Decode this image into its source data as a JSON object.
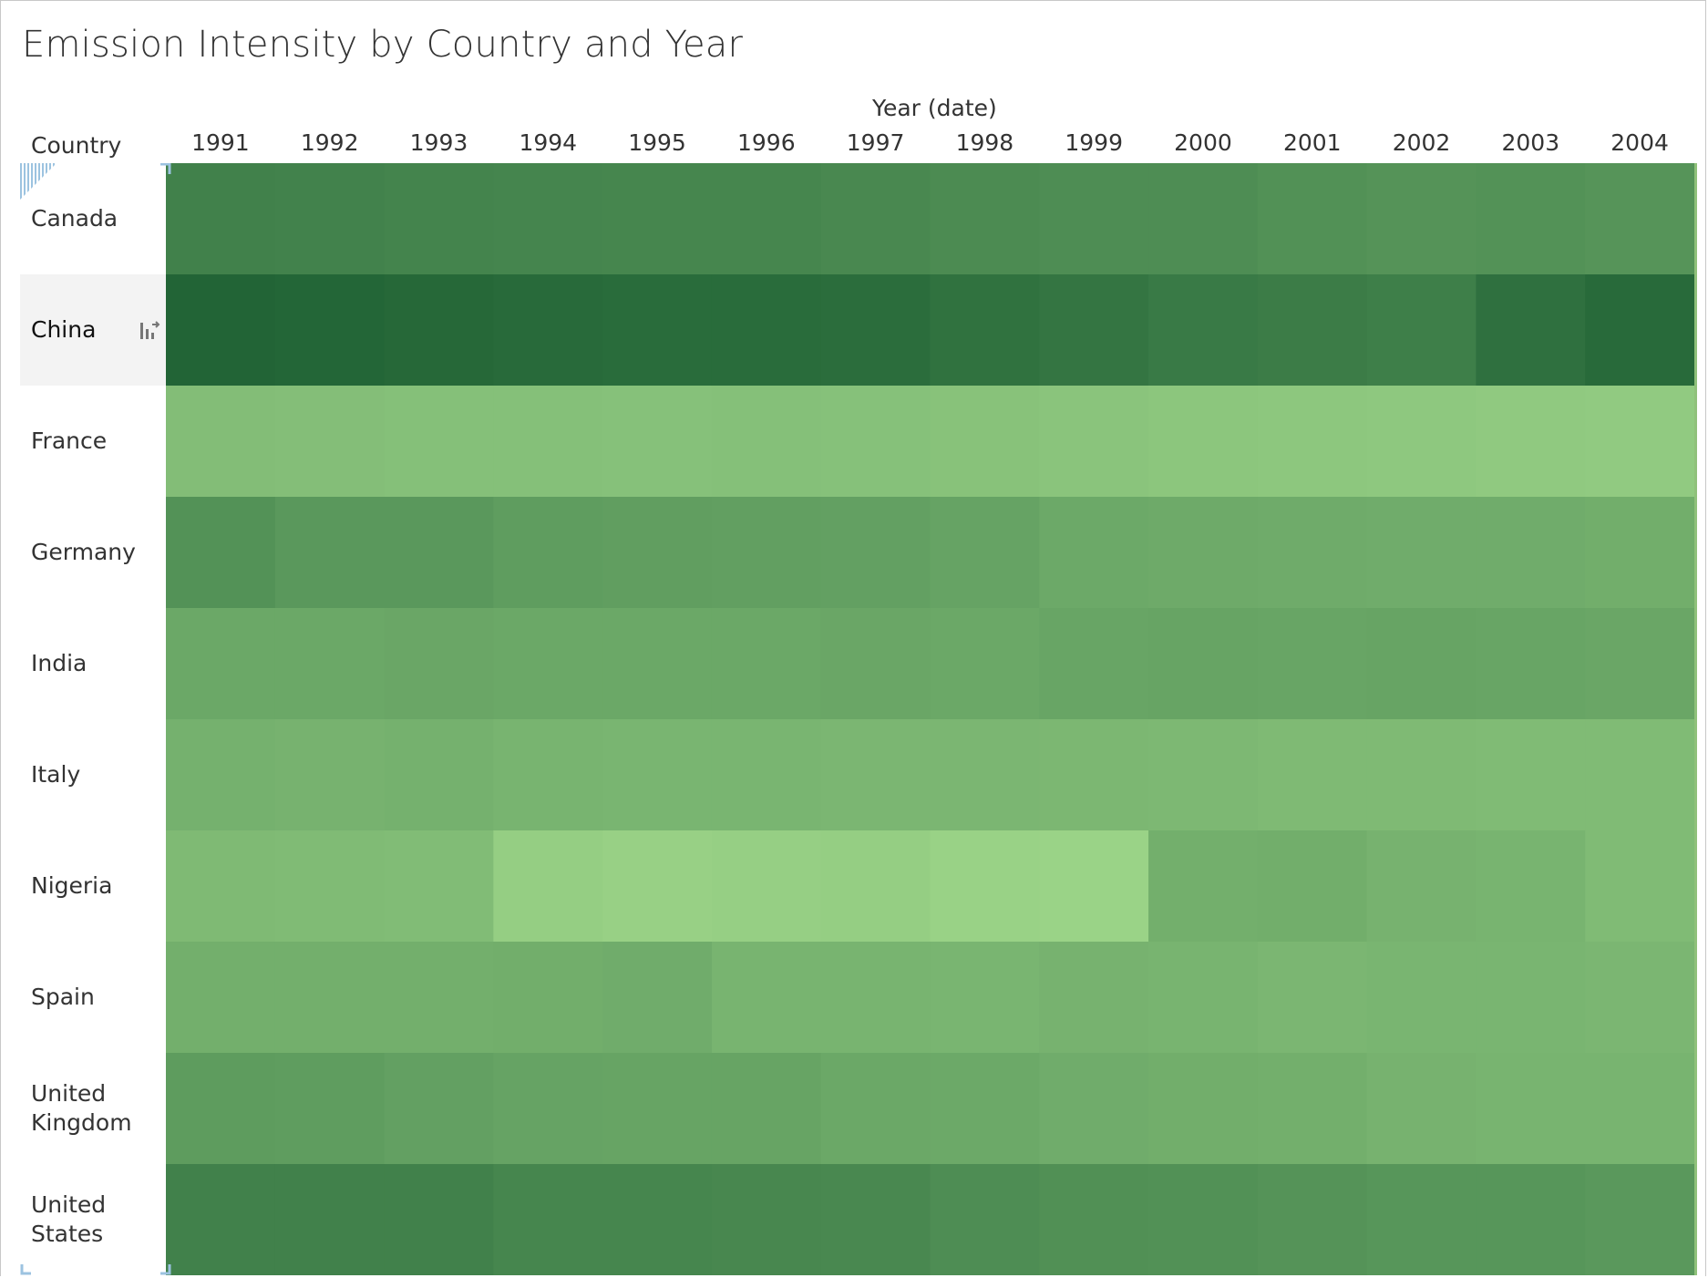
{
  "colors": {
    "low": "#a2da8c",
    "high": "#1f6234",
    "text": "#333333",
    "selected_row_bg": "#f3f3f3"
  },
  "icons": {
    "sort": "sort-descending-icon"
  },
  "selected_row": "China",
  "chart_data": {
    "type": "heatmap",
    "title": "Emission Intensity by Country and Year",
    "xlabel": "Year (date)",
    "ylabel": "Country",
    "x": [
      "1991",
      "1992",
      "1993",
      "1994",
      "1995",
      "1996",
      "1997",
      "1998",
      "1999",
      "2000",
      "2001",
      "2002",
      "2003",
      "2004"
    ],
    "y": [
      "Canada",
      "China",
      "France",
      "Germany",
      "India",
      "Italy",
      "Nigeria",
      "Spain",
      "United Kingdom",
      "United States"
    ],
    "y_display": [
      "Canada",
      "China",
      "France",
      "Germany",
      "India",
      "Italy",
      "Nigeria",
      "Spain",
      "United\nKingdom",
      "United\nStates"
    ],
    "values": [
      [
        0.74,
        0.73,
        0.72,
        0.71,
        0.7,
        0.7,
        0.68,
        0.66,
        0.64,
        0.64,
        0.61,
        0.59,
        0.6,
        0.58
      ],
      [
        0.98,
        0.97,
        0.95,
        0.93,
        0.92,
        0.92,
        0.91,
        0.87,
        0.84,
        0.8,
        0.78,
        0.76,
        0.88,
        0.93
      ],
      [
        0.24,
        0.23,
        0.22,
        0.22,
        0.21,
        0.22,
        0.21,
        0.2,
        0.18,
        0.17,
        0.16,
        0.15,
        0.14,
        0.13
      ],
      [
        0.6,
        0.55,
        0.55,
        0.51,
        0.5,
        0.49,
        0.48,
        0.46,
        0.41,
        0.4,
        0.39,
        0.38,
        0.38,
        0.37
      ],
      [
        0.42,
        0.42,
        0.43,
        0.42,
        0.42,
        0.42,
        0.43,
        0.42,
        0.44,
        0.45,
        0.44,
        0.45,
        0.44,
        0.43
      ],
      [
        0.34,
        0.33,
        0.34,
        0.32,
        0.31,
        0.31,
        0.3,
        0.3,
        0.29,
        0.28,
        0.27,
        0.27,
        0.26,
        0.26
      ],
      [
        0.27,
        0.26,
        0.25,
        0.1,
        0.08,
        0.09,
        0.1,
        0.07,
        0.06,
        0.36,
        0.37,
        0.33,
        0.32,
        0.26
      ],
      [
        0.36,
        0.36,
        0.36,
        0.37,
        0.38,
        0.32,
        0.32,
        0.31,
        0.33,
        0.32,
        0.3,
        0.31,
        0.31,
        0.3
      ],
      [
        0.52,
        0.51,
        0.48,
        0.46,
        0.45,
        0.45,
        0.42,
        0.41,
        0.38,
        0.37,
        0.36,
        0.33,
        0.32,
        0.32
      ],
      [
        0.74,
        0.74,
        0.74,
        0.7,
        0.7,
        0.69,
        0.68,
        0.64,
        0.62,
        0.61,
        0.59,
        0.57,
        0.57,
        0.55
      ]
    ]
  }
}
